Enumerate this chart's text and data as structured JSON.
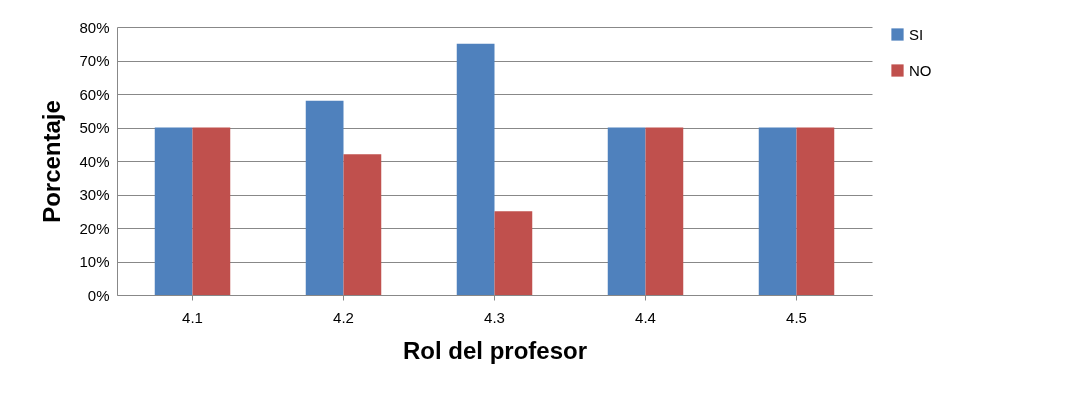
{
  "chart_data": {
    "type": "bar",
    "xlabel": "Rol del profesor",
    "ylabel": "Porcentaje",
    "categories": [
      "4.1",
      "4.2",
      "4.3",
      "4.4",
      "4.5"
    ],
    "series": [
      {
        "name": "SI",
        "color": "#4f81bd",
        "values": [
          50,
          58,
          75,
          50,
          50
        ]
      },
      {
        "name": "NO",
        "color": "#c0504d",
        "values": [
          50,
          42,
          25,
          50,
          50
        ]
      }
    ],
    "ylim": [
      0,
      80
    ],
    "yticks": [
      {
        "value": 0,
        "label": "0%"
      },
      {
        "value": 10,
        "label": "10%"
      },
      {
        "value": 20,
        "label": "20%"
      },
      {
        "value": 30,
        "label": "30%"
      },
      {
        "value": 40,
        "label": "40%"
      },
      {
        "value": 50,
        "label": "50%"
      },
      {
        "value": 60,
        "label": "60%"
      },
      {
        "value": 70,
        "label": "70%"
      },
      {
        "value": 80,
        "label": "80%"
      }
    ],
    "grid": "y",
    "legend": "right"
  }
}
